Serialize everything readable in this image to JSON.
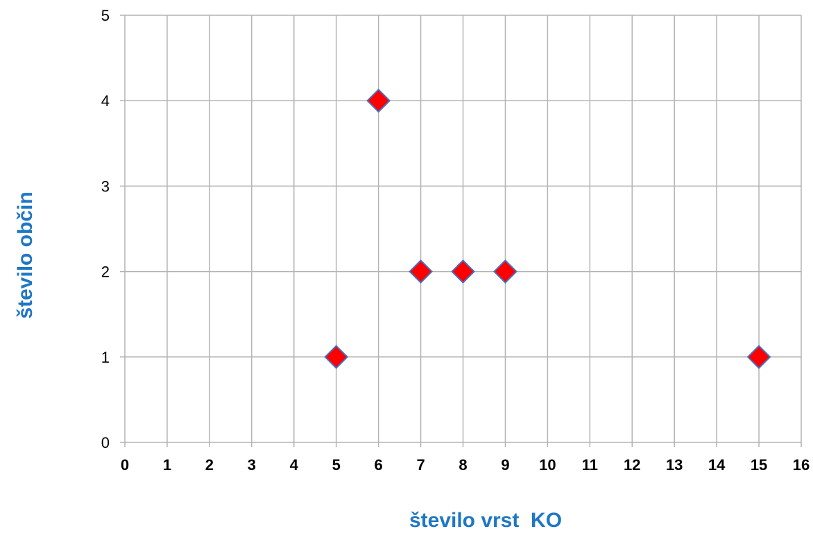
{
  "chart_data": {
    "type": "scatter",
    "title": "",
    "xlabel": "število vrst  KO",
    "ylabel": "število občin",
    "xlim": [
      0,
      16
    ],
    "ylim": [
      0,
      5
    ],
    "x_ticks": [
      0,
      1,
      2,
      3,
      4,
      5,
      6,
      7,
      8,
      9,
      10,
      11,
      12,
      13,
      14,
      15,
      16
    ],
    "y_ticks": [
      0,
      1,
      2,
      3,
      4,
      5
    ],
    "grid": true,
    "legend": "none",
    "marker": "diamond",
    "series": [
      {
        "points": [
          {
            "x": 5,
            "y": 1
          },
          {
            "x": 6,
            "y": 4
          },
          {
            "x": 7,
            "y": 2
          },
          {
            "x": 8,
            "y": 2
          },
          {
            "x": 9,
            "y": 2
          },
          {
            "x": 15,
            "y": 1
          }
        ]
      }
    ]
  },
  "colors": {
    "marker_fill": "#ff0000",
    "marker_stroke": "#4472c4",
    "gridline": "#b3b3b3",
    "axis_title": "#1f77c4"
  }
}
